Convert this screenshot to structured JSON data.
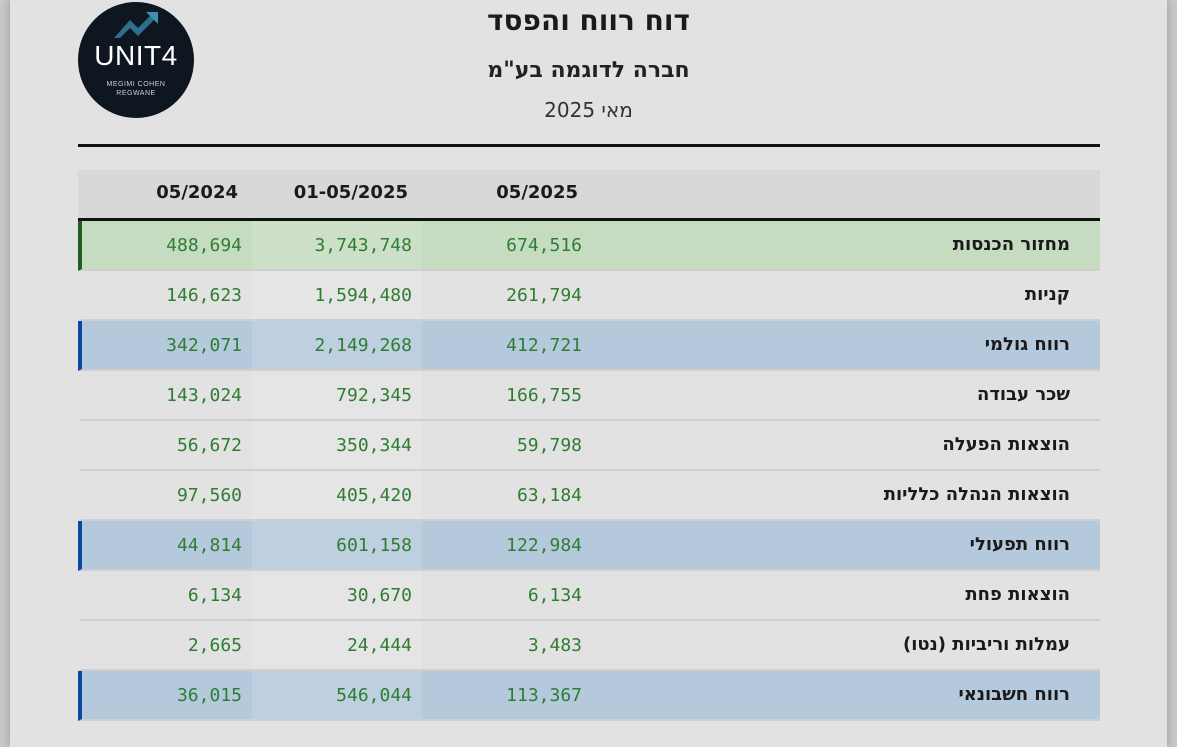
{
  "logo": {
    "main": "UNIT4",
    "sub1": "MEGIMI COHEN",
    "sub2": "REGWANE"
  },
  "header": {
    "title": "דוח רווח והפסד",
    "company": "חברה לדוגמה בע\"מ",
    "period": "מאי 2025"
  },
  "table": {
    "columns": [
      "05/2024",
      "01-05/2025",
      "05/2025"
    ],
    "rows": [
      {
        "label": "מחזור הכנסות",
        "values": [
          "488,694",
          "3,743,748",
          "674,516"
        ],
        "style": "green"
      },
      {
        "label": "קניות",
        "values": [
          "146,623",
          "1,594,480",
          "261,794"
        ],
        "style": "plain"
      },
      {
        "label": "רווח גולמי",
        "values": [
          "342,071",
          "2,149,268",
          "412,721"
        ],
        "style": "blue"
      },
      {
        "label": "שכר עבודה",
        "values": [
          "143,024",
          "792,345",
          "166,755"
        ],
        "style": "plain"
      },
      {
        "label": "הוצאות הפעלה",
        "values": [
          "56,672",
          "350,344",
          "59,798"
        ],
        "style": "plain"
      },
      {
        "label": "הוצאות הנהלה כלליות",
        "values": [
          "97,560",
          "405,420",
          "63,184"
        ],
        "style": "plain"
      },
      {
        "label": "רווח תפעולי",
        "values": [
          "44,814",
          "601,158",
          "122,984"
        ],
        "style": "blue"
      },
      {
        "label": "הוצאות פחת",
        "values": [
          "6,134",
          "30,670",
          "6,134"
        ],
        "style": "plain"
      },
      {
        "label": "עמלות וריביות (נטו)",
        "values": [
          "2,665",
          "24,444",
          "3,483"
        ],
        "style": "plain"
      },
      {
        "label": "רווח חשבונאי",
        "values": [
          "36,015",
          "546,044",
          "113,367"
        ],
        "style": "blue"
      }
    ]
  }
}
